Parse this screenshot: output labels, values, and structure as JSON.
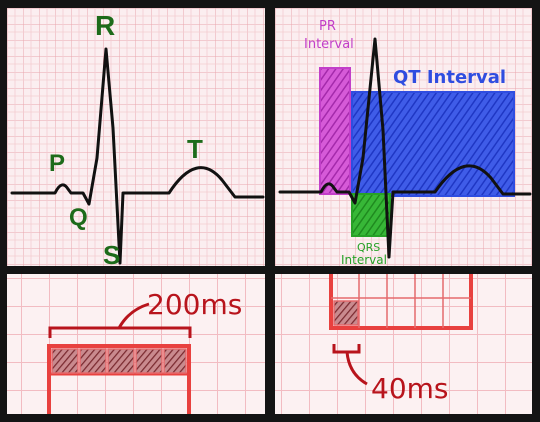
{
  "panels": {
    "waveform": {
      "labels": {
        "p": "P",
        "q": "Q",
        "r": "R",
        "s": "S",
        "t": "T"
      }
    },
    "intervals": {
      "pr_label_line1": "PR",
      "pr_label_line2": "Interval",
      "qt_label": "QT Interval",
      "qrs_label_line1": "QRS",
      "qrs_label_line2": "Interval"
    },
    "large_box": {
      "duration_label": "200ms"
    },
    "small_box": {
      "duration_label": "40ms"
    }
  },
  "colors": {
    "grid_minor": "#f2c3c8",
    "grid_major": "#e79aa2",
    "paper": "#fbeef0",
    "trace": "#111111",
    "wave_labels": "#1d6b1a",
    "pr_interval": "#c23fc9",
    "qt_interval": "#2f4de0",
    "qrs_interval": "#27a127",
    "box_outline": "#e8413f",
    "duration_text": "#b8141c"
  }
}
